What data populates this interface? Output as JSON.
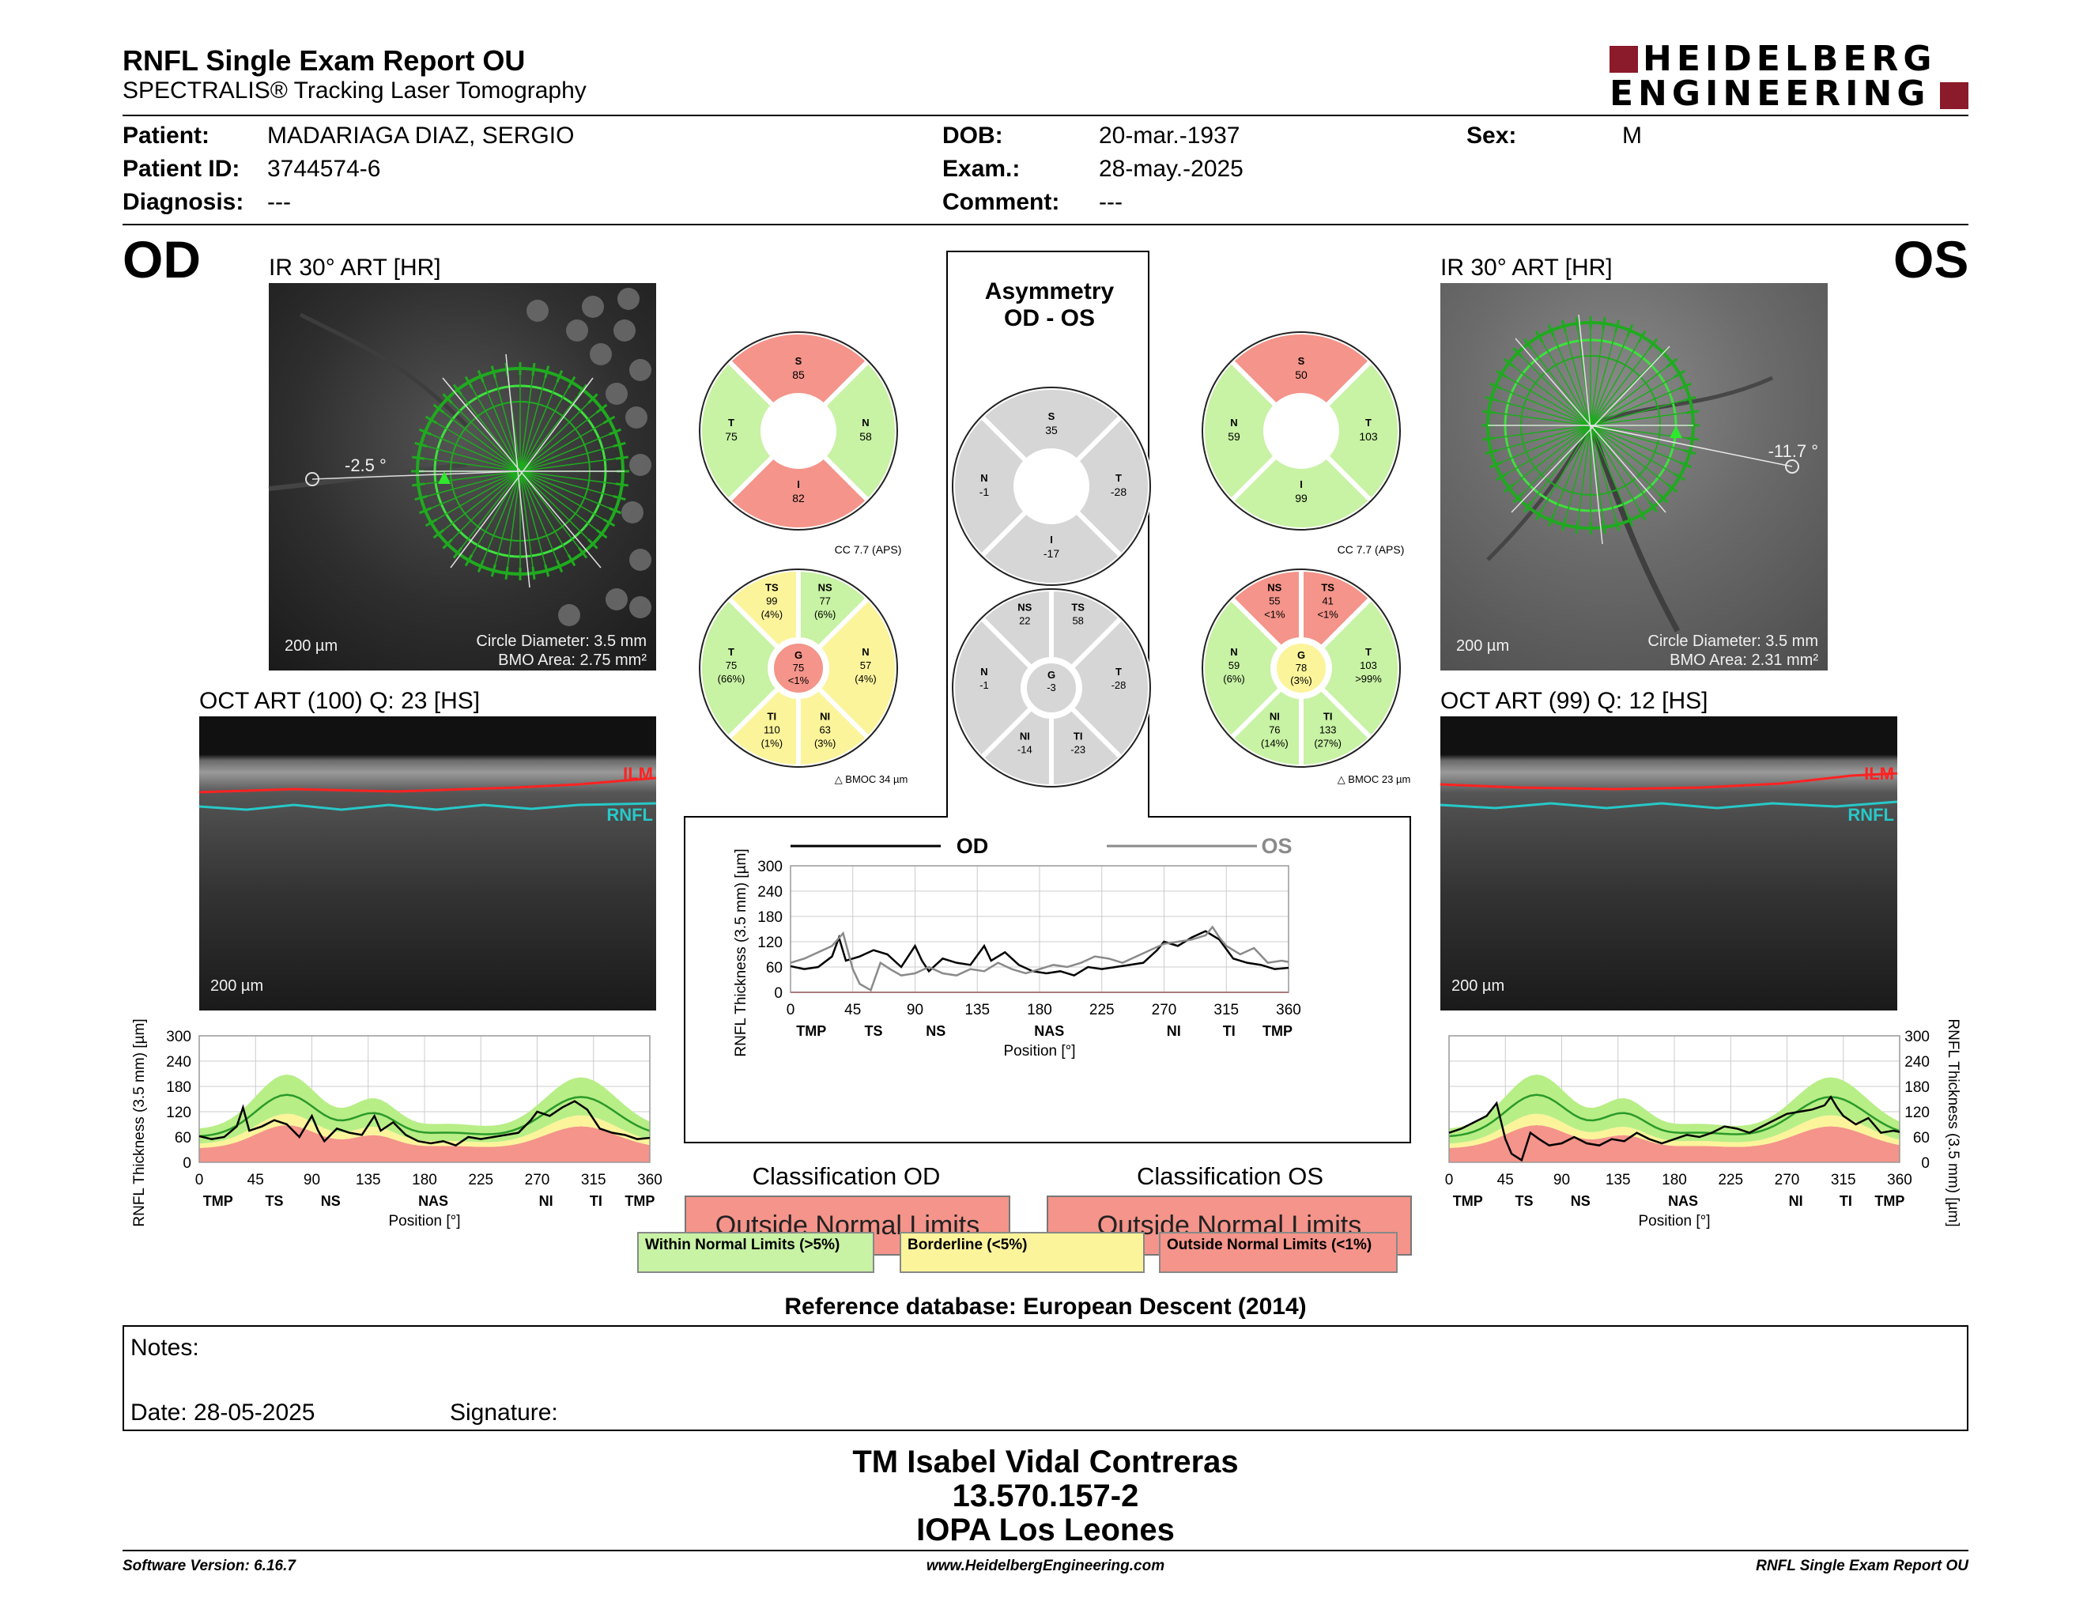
{
  "header": {
    "title": "RNFL Single Exam Report OU",
    "subtitle": "SPECTRALIS® Tracking Laser Tomography",
    "brand_line1": "HEIDELBERG",
    "brand_line2": "ENGINEERING",
    "brand_color": "#8b1a2b"
  },
  "patient": {
    "patient_label": "Patient:",
    "patient_value": "MADARIAGA DIAZ, SERGIO",
    "id_label": "Patient ID:",
    "id_value": "3744574-6",
    "diag_label": "Diagnosis:",
    "diag_value": "---",
    "dob_label": "DOB:",
    "dob_value": "20-mar.-1937",
    "exam_label": "Exam.:",
    "exam_value": "28-may.-2025",
    "comment_label": "Comment:",
    "comment_value": "---",
    "sex_label": "Sex:",
    "sex_value": "M"
  },
  "od": {
    "eye": "OD",
    "ir_title": "IR 30° ART [HR]",
    "angle": "-2.5 °",
    "scale": "200 µm",
    "circle": "Circle Diameter: 3.5 mm",
    "bmo": "BMO Area: 2.75 mm²",
    "oct_title": "OCT ART (100) Q: 23 [HS]",
    "oct_scale": "200 µm",
    "ilm": "ILM",
    "rnfl": "RNFL",
    "classification_title": "Classification OD",
    "classification": "Outside Normal Limits"
  },
  "os": {
    "eye": "OS",
    "ir_title": "IR 30° ART [HR]",
    "angle": "-11.7 °",
    "scale": "200 µm",
    "circle": "Circle Diameter: 3.5 mm",
    "bmo": "BMO Area: 2.31 mm²",
    "oct_title": "OCT ART (99) Q: 12 [HS]",
    "oct_scale": "200 µm",
    "ilm": "ILM",
    "rnfl": "RNFL",
    "classification_title": "Classification OS",
    "classification": "Outside Normal Limits"
  },
  "asymmetry": {
    "title1": "Asymmetry",
    "title2": "OD - OS"
  },
  "colors": {
    "normal": "#c8f2a4",
    "borderline": "#fbf49b",
    "outside": "#f4948a",
    "gray": "#d6d6d6"
  },
  "sectors": {
    "od_quad": {
      "S": "85",
      "N": "58",
      "I": "82",
      "T": "75"
    },
    "os_quad": {
      "S": "50",
      "T": "103",
      "I": "99",
      "N": "59"
    },
    "asym_quad": {
      "S": "35",
      "N": "-1",
      "I": "-17",
      "T": "-28"
    },
    "od_six": {
      "cc": "CC 7.7 (APS)",
      "bmo": "BMOC 34 µm",
      "TS": [
        "TS",
        "99",
        "(4%)"
      ],
      "NS": [
        "NS",
        "77",
        "(6%)"
      ],
      "N": [
        "N",
        "57",
        "(4%)"
      ],
      "NI": [
        "NI",
        "63",
        "(3%)"
      ],
      "TI": [
        "TI",
        "110",
        "(1%)"
      ],
      "T": [
        "T",
        "75",
        "(66%)"
      ],
      "G": [
        "G",
        "75",
        "<1%"
      ]
    },
    "os_six": {
      "cc": "CC 7.7 (APS)",
      "bmo": "BMOC 23 µm",
      "NS": [
        "NS",
        "55",
        "<1%"
      ],
      "TS": [
        "TS",
        "41",
        "<1%"
      ],
      "T": [
        "T",
        "103",
        ">99%"
      ],
      "TI": [
        "TI",
        "133",
        "(27%)"
      ],
      "NI": [
        "NI",
        "76",
        "(14%)"
      ],
      "N": [
        "N",
        "59",
        "(6%)"
      ],
      "G": [
        "G",
        "78",
        "(3%)"
      ]
    },
    "asym_six": {
      "NS": [
        "NS",
        "22"
      ],
      "TS": [
        "TS",
        "58"
      ],
      "T": [
        "T",
        "-28"
      ],
      "TI": [
        "TI",
        "-23"
      ],
      "NI": [
        "NI",
        "-14"
      ],
      "N": [
        "N",
        "-1"
      ],
      "G": [
        "G",
        "-3"
      ]
    }
  },
  "legend": {
    "normal": "Within Normal Limits (>5%)",
    "borderline": "Borderline (<5%)",
    "outside": "Outside Normal Limits (<1%)"
  },
  "reference": "Reference database: European Descent (2014)",
  "notes": {
    "notes_label": "Notes:",
    "date_label": "Date: 28-05-2025",
    "signature_label": "Signature:"
  },
  "signer": {
    "name": "TM Isabel Vidal Contreras",
    "rut": "13.570.157-2",
    "org": "IOPA Los Leones"
  },
  "footer": {
    "left": "Software Version: 6.16.7",
    "center": "www.HeidelbergEngineering.com",
    "right": "RNFL Single Exam Report OU"
  },
  "chart_data": [
    {
      "type": "line",
      "id": "od-profile",
      "xlabel": "Position [°]",
      "ylabel": "RNFL Thickness (3.5 mm) [µm]",
      "xlim": [
        0,
        360
      ],
      "ylim": [
        0,
        300
      ],
      "xticks": [
        0,
        45,
        90,
        135,
        180,
        225,
        270,
        315,
        360
      ],
      "yticks": [
        0,
        60,
        120,
        180,
        240,
        300
      ],
      "sector_labels": [
        "TMP",
        "TS",
        "NS",
        "NAS",
        "NI",
        "TI",
        "TMP"
      ],
      "series": [
        {
          "values": [
            [
              0,
              62
            ],
            [
              10,
              55
            ],
            [
              20,
              60
            ],
            [
              30,
              85
            ],
            [
              35,
              130
            ],
            [
              40,
              75
            ],
            [
              50,
              85
            ],
            [
              60,
              100
            ],
            [
              70,
              90
            ],
            [
              80,
              60
            ],
            [
              90,
              110
            ],
            [
              95,
              75
            ],
            [
              100,
              50
            ],
            [
              110,
              80
            ],
            [
              120,
              70
            ],
            [
              130,
              65
            ],
            [
              140,
              110
            ],
            [
              145,
              75
            ],
            [
              155,
              95
            ],
            [
              165,
              65
            ],
            [
              175,
              50
            ],
            [
              185,
              45
            ],
            [
              195,
              50
            ],
            [
              205,
              40
            ],
            [
              215,
              60
            ],
            [
              225,
              55
            ],
            [
              235,
              60
            ],
            [
              245,
              65
            ],
            [
              255,
              70
            ],
            [
              265,
              100
            ],
            [
              270,
              120
            ],
            [
              280,
              110
            ],
            [
              290,
              130
            ],
            [
              300,
              145
            ],
            [
              310,
              125
            ],
            [
              320,
              80
            ],
            [
              330,
              70
            ],
            [
              340,
              65
            ],
            [
              350,
              55
            ],
            [
              360,
              58
            ]
          ]
        }
      ]
    },
    {
      "type": "line",
      "id": "os-profile",
      "xlabel": "Position [°]",
      "ylabel": "RNFL Thickness (3.5 mm) [µm]",
      "xlim": [
        0,
        360
      ],
      "ylim": [
        0,
        300
      ],
      "xticks": [
        0,
        45,
        90,
        135,
        180,
        225,
        270,
        315,
        360
      ],
      "yticks": [
        0,
        60,
        120,
        180,
        240,
        300
      ],
      "sector_labels": [
        "TMP",
        "TS",
        "NS",
        "NAS",
        "NI",
        "TI",
        "TMP"
      ],
      "series": [
        {
          "values": [
            [
              0,
              70
            ],
            [
              10,
              80
            ],
            [
              20,
              95
            ],
            [
              30,
              110
            ],
            [
              38,
              140
            ],
            [
              45,
              55
            ],
            [
              50,
              20
            ],
            [
              58,
              5
            ],
            [
              65,
              70
            ],
            [
              72,
              55
            ],
            [
              80,
              40
            ],
            [
              90,
              45
            ],
            [
              100,
              60
            ],
            [
              110,
              45
            ],
            [
              120,
              40
            ],
            [
              130,
              55
            ],
            [
              140,
              50
            ],
            [
              150,
              70
            ],
            [
              160,
              55
            ],
            [
              170,
              45
            ],
            [
              180,
              55
            ],
            [
              190,
              65
            ],
            [
              200,
              60
            ],
            [
              210,
              70
            ],
            [
              220,
              85
            ],
            [
              230,
              80
            ],
            [
              240,
              70
            ],
            [
              250,
              85
            ],
            [
              260,
              100
            ],
            [
              270,
              115
            ],
            [
              280,
              120
            ],
            [
              290,
              125
            ],
            [
              300,
              135
            ],
            [
              305,
              155
            ],
            [
              310,
              130
            ],
            [
              315,
              110
            ],
            [
              325,
              90
            ],
            [
              335,
              105
            ],
            [
              345,
              70
            ],
            [
              355,
              75
            ],
            [
              360,
              72
            ]
          ]
        }
      ]
    },
    {
      "type": "line",
      "id": "asym-profile",
      "xlabel": "Position [°]",
      "ylabel": "RNFL Thickness (3.5 mm) [µm]",
      "xlim": [
        0,
        360
      ],
      "ylim": [
        0,
        300
      ],
      "xticks": [
        0,
        45,
        90,
        135,
        180,
        225,
        270,
        315,
        360
      ],
      "yticks": [
        0,
        60,
        120,
        180,
        240,
        300
      ],
      "sector_labels": [
        "TMP",
        "TS",
        "NS",
        "NAS",
        "NI",
        "TI",
        "TMP"
      ],
      "series": [
        {
          "name": "OD",
          "values": [
            [
              0,
              62
            ],
            [
              10,
              55
            ],
            [
              20,
              60
            ],
            [
              30,
              85
            ],
            [
              35,
              130
            ],
            [
              40,
              75
            ],
            [
              50,
              85
            ],
            [
              60,
              100
            ],
            [
              70,
              90
            ],
            [
              80,
              60
            ],
            [
              90,
              110
            ],
            [
              95,
              75
            ],
            [
              100,
              50
            ],
            [
              110,
              80
            ],
            [
              120,
              70
            ],
            [
              130,
              65
            ],
            [
              140,
              110
            ],
            [
              145,
              75
            ],
            [
              155,
              95
            ],
            [
              165,
              65
            ],
            [
              175,
              50
            ],
            [
              185,
              45
            ],
            [
              195,
              50
            ],
            [
              205,
              40
            ],
            [
              215,
              60
            ],
            [
              225,
              55
            ],
            [
              235,
              60
            ],
            [
              245,
              65
            ],
            [
              255,
              70
            ],
            [
              265,
              100
            ],
            [
              270,
              120
            ],
            [
              280,
              110
            ],
            [
              290,
              130
            ],
            [
              300,
              145
            ],
            [
              310,
              125
            ],
            [
              320,
              80
            ],
            [
              330,
              70
            ],
            [
              340,
              65
            ],
            [
              350,
              55
            ],
            [
              360,
              58
            ]
          ]
        },
        {
          "name": "OS",
          "values": [
            [
              0,
              70
            ],
            [
              10,
              80
            ],
            [
              20,
              95
            ],
            [
              30,
              110
            ],
            [
              38,
              140
            ],
            [
              45,
              55
            ],
            [
              50,
              20
            ],
            [
              58,
              5
            ],
            [
              65,
              70
            ],
            [
              72,
              55
            ],
            [
              80,
              40
            ],
            [
              90,
              45
            ],
            [
              100,
              60
            ],
            [
              110,
              45
            ],
            [
              120,
              40
            ],
            [
              130,
              55
            ],
            [
              140,
              50
            ],
            [
              150,
              70
            ],
            [
              160,
              55
            ],
            [
              170,
              45
            ],
            [
              180,
              55
            ],
            [
              190,
              65
            ],
            [
              200,
              60
            ],
            [
              210,
              70
            ],
            [
              220,
              85
            ],
            [
              230,
              80
            ],
            [
              240,
              70
            ],
            [
              250,
              85
            ],
            [
              260,
              100
            ],
            [
              270,
              115
            ],
            [
              280,
              120
            ],
            [
              290,
              125
            ],
            [
              300,
              135
            ],
            [
              305,
              155
            ],
            [
              310,
              130
            ],
            [
              315,
              110
            ],
            [
              325,
              90
            ],
            [
              335,
              105
            ],
            [
              345,
              70
            ],
            [
              355,
              75
            ],
            [
              360,
              72
            ]
          ]
        }
      ]
    }
  ]
}
